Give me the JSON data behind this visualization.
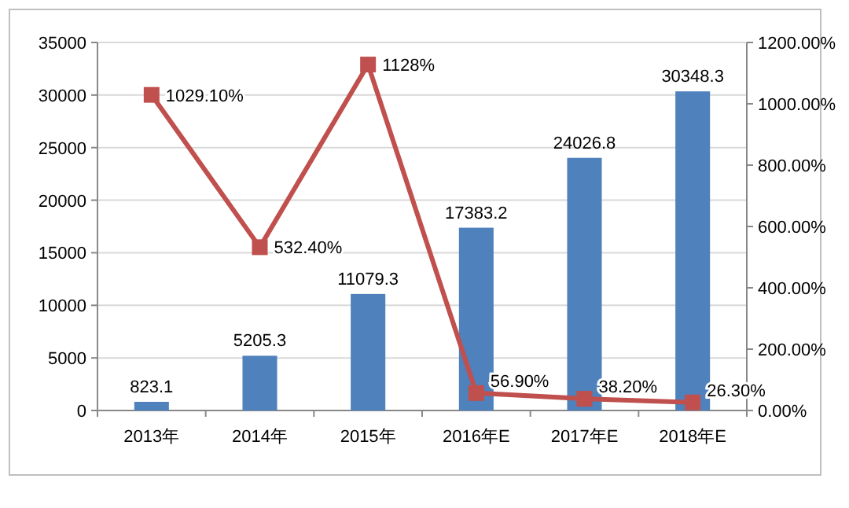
{
  "chart_data": {
    "type": "bar",
    "categories": [
      "2013年",
      "2014年",
      "2015年",
      "2016年E",
      "2017年E",
      "2018年E"
    ],
    "series": [
      {
        "color": "#4f81bd",
        "values": [
          823.1,
          5205.3,
          11079.3,
          17383.2,
          24026.8,
          30348.3
        ],
        "value_labels": [
          "823.1",
          "5205.3",
          "11079.3",
          "17383.2",
          "24026.8",
          "30348.3"
        ]
      },
      {
        "type": "line",
        "axis": "y2",
        "color": "#c0504d",
        "marker": "square",
        "values": [
          1029.1,
          532.4,
          1128,
          56.9,
          38.2,
          26.3
        ],
        "value_labels": [
          "1029.10%",
          "532.40%",
          "1128%",
          "56.90%",
          "38.20%",
          "26.30%"
        ]
      }
    ],
    "ylim": [
      0,
      35000
    ],
    "yticks": [
      0,
      5000,
      10000,
      15000,
      20000,
      25000,
      30000,
      35000
    ],
    "y2lim": [
      0,
      1200
    ],
    "y2ticks": [
      {
        "value": 0,
        "label": "0.00%"
      },
      {
        "value": 200,
        "label": "200.00%"
      },
      {
        "value": 400,
        "label": "400.00%"
      },
      {
        "value": 600,
        "label": "600.00%"
      },
      {
        "value": 800,
        "label": "800.00%"
      },
      {
        "value": 1000,
        "label": "1000.00%"
      },
      {
        "value": 1200,
        "label": "1200.00%"
      }
    ],
    "grid": "y"
  }
}
